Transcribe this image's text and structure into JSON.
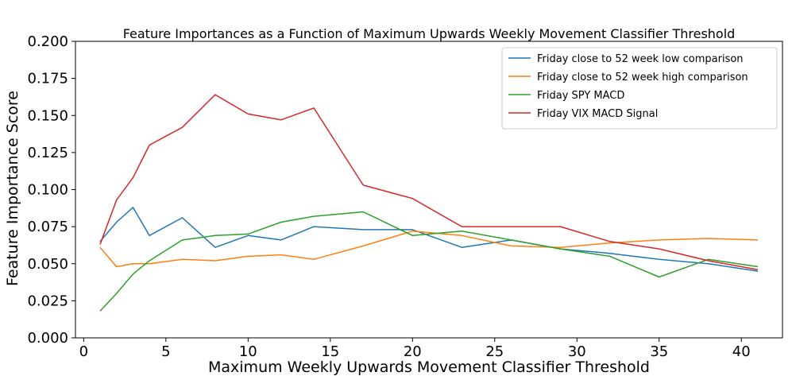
{
  "chart_data": {
    "type": "line",
    "title": "Feature Importances as a Function of Maximum Upwards Weekly Movement Classifier Threshold",
    "xlabel": "Maximum Weekly Upwards Movement Classifier Threshold",
    "ylabel": "Feature Importance Score",
    "xlim": [
      -0.5,
      42.5
    ],
    "ylim": [
      0,
      0.2
    ],
    "xticks": [
      "0",
      "5",
      "10",
      "15",
      "20",
      "25",
      "30",
      "35",
      "40"
    ],
    "yticks": [
      "0.000",
      "0.025",
      "0.050",
      "0.075",
      "0.100",
      "0.125",
      "0.150",
      "0.175",
      "0.200"
    ],
    "grid": false,
    "legend_position": "top-right",
    "series": [
      {
        "name": "Friday close to 52 week low comparison",
        "color": "#1f77b4",
        "x": [
          1,
          2,
          3,
          4,
          6,
          8,
          10,
          12,
          14,
          17,
          20,
          23,
          26,
          29,
          32,
          35,
          38,
          41
        ],
        "y": [
          0.065,
          0.078,
          0.088,
          0.069,
          0.081,
          0.061,
          0.069,
          0.066,
          0.075,
          0.073,
          0.073,
          0.061,
          0.066,
          0.06,
          0.057,
          0.053,
          0.05,
          0.045
        ]
      },
      {
        "name": "Friday close to 52 week high comparison",
        "color": "#ff7f0e",
        "x": [
          1,
          2,
          3,
          4,
          6,
          8,
          10,
          12,
          14,
          17,
          20,
          23,
          26,
          29,
          32,
          35,
          38,
          41
        ],
        "y": [
          0.061,
          0.048,
          0.05,
          0.05,
          0.053,
          0.052,
          0.055,
          0.056,
          0.053,
          0.062,
          0.072,
          0.069,
          0.062,
          0.061,
          0.064,
          0.066,
          0.067,
          0.066
        ]
      },
      {
        "name": "Friday SPY MACD",
        "color": "#2ca02c",
        "x": [
          1,
          2,
          3,
          4,
          6,
          8,
          10,
          12,
          14,
          17,
          20,
          23,
          26,
          29,
          32,
          35,
          38,
          41
        ],
        "y": [
          0.018,
          0.03,
          0.043,
          0.052,
          0.066,
          0.069,
          0.07,
          0.078,
          0.082,
          0.085,
          0.069,
          0.072,
          0.066,
          0.06,
          0.055,
          0.041,
          0.053,
          0.048
        ]
      },
      {
        "name": "Friday VIX MACD Signal",
        "color": "#d62728",
        "x": [
          1,
          2,
          3,
          4,
          6,
          8,
          10,
          12,
          14,
          17,
          20,
          23,
          26,
          29,
          32,
          35,
          38,
          41
        ],
        "y": [
          0.063,
          0.093,
          0.108,
          0.13,
          0.142,
          0.164,
          0.151,
          0.147,
          0.155,
          0.103,
          0.094,
          0.075,
          0.075,
          0.075,
          0.065,
          0.06,
          0.052,
          0.046
        ]
      }
    ]
  }
}
